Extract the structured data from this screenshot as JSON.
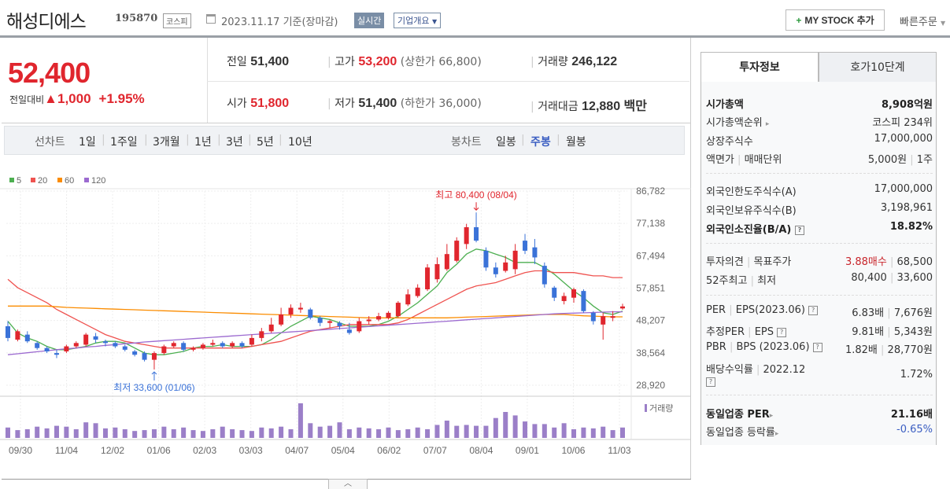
{
  "header": {
    "name": "해성디에스",
    "code": "195870",
    "market": "코스피",
    "date": "2023.11.17  기준(장마감)",
    "live": "실시간",
    "overview": "기업개요",
    "mystock": "MY STOCK 추가",
    "quick_order": "빠른주문"
  },
  "price": {
    "current": "52,400",
    "change_label": "전일대비",
    "change": "▲1,000",
    "change_pct": "+1.95%"
  },
  "stats": {
    "prev_label": "전일",
    "prev": "51,400",
    "high_label": "고가",
    "high": "53,200",
    "upper_limit": "(상한가 66,800)",
    "volume_label": "거래량",
    "volume": "246,122",
    "open_label": "시가",
    "open": "51,800",
    "low_label": "저가",
    "low": "51,400",
    "lower_limit": "(하한가 36,000)",
    "amount_label": "거래대금",
    "amount": "12,880",
    "amount_unit": "백만"
  },
  "period_tabs": {
    "line_label": "선차트",
    "line": [
      "1일",
      "1주일",
      "3개월",
      "1년",
      "3년",
      "5년",
      "10년"
    ],
    "candle_label": "봉차트",
    "candle": [
      "일봉",
      "주봉",
      "월봉"
    ],
    "active": "주봉"
  },
  "chart_data": {
    "type": "candlestick",
    "legend": [
      {
        "name": "5",
        "color": "#4caf50"
      },
      {
        "name": "20",
        "color": "#ef5350"
      },
      {
        "name": "60",
        "color": "#fb8c00"
      },
      {
        "name": "120",
        "color": "#9c6ad0"
      }
    ],
    "y_ticks": [
      "86,782",
      "77,138",
      "67,494",
      "57,851",
      "48,207",
      "38,564",
      "28,920"
    ],
    "ylim": [
      28920,
      86782
    ],
    "x_ticks": [
      "09/30",
      "11/04",
      "12/02",
      "01/06",
      "02/03",
      "03/03",
      "04/07",
      "05/04",
      "06/02",
      "07/07",
      "08/04",
      "09/01",
      "10/06",
      "11/03"
    ],
    "high_note": "최고 80,400 (08/04)",
    "low_note": "최저 33,600 (01/06)",
    "volume_label": "거래량",
    "candles": [
      [
        46500,
        43000,
        48000,
        42000
      ],
      [
        42500,
        45000,
        45500,
        42000
      ],
      [
        44000,
        42000,
        45000,
        41500
      ],
      [
        41500,
        40000,
        42000,
        39500
      ],
      [
        40000,
        39000,
        40500,
        38500
      ],
      [
        38500,
        38000,
        39500,
        37000
      ],
      [
        39000,
        40500,
        41000,
        38500
      ],
      [
        40500,
        41500,
        42000,
        40000
      ],
      [
        41000,
        44000,
        44500,
        40500
      ],
      [
        43500,
        42500,
        44500,
        41500
      ],
      [
        42000,
        41500,
        42500,
        40500
      ],
      [
        41500,
        40500,
        42000,
        40000
      ],
      [
        40500,
        39500,
        41000,
        39000
      ],
      [
        39000,
        38000,
        39500,
        37500
      ],
      [
        38500,
        36500,
        39000,
        36000
      ],
      [
        36500,
        38500,
        39000,
        33600
      ],
      [
        38500,
        40500,
        41000,
        38000
      ],
      [
        40500,
        41500,
        42000,
        40000
      ],
      [
        41500,
        39500,
        42000,
        39000
      ],
      [
        39500,
        40000,
        40500,
        39000
      ],
      [
        40000,
        41000,
        41500,
        39500
      ],
      [
        41000,
        41500,
        42500,
        40500
      ],
      [
        41500,
        40500,
        42000,
        40000
      ],
      [
        40500,
        41500,
        42000,
        40000
      ],
      [
        41500,
        40500,
        42000,
        40000
      ],
      [
        41000,
        43000,
        44000,
        40500
      ],
      [
        43000,
        45000,
        46000,
        42000
      ],
      [
        45000,
        47000,
        49000,
        44500
      ],
      [
        47000,
        50000,
        52000,
        46500
      ],
      [
        50000,
        52000,
        53000,
        49000
      ],
      [
        51500,
        52000,
        53500,
        50500
      ],
      [
        51500,
        49000,
        52000,
        48500
      ],
      [
        49000,
        47500,
        49500,
        46500
      ],
      [
        47500,
        48000,
        48500,
        46000
      ],
      [
        47500,
        46500,
        48000,
        45500
      ],
      [
        45500,
        44500,
        47500,
        44000
      ],
      [
        45000,
        48000,
        49000,
        44500
      ],
      [
        48000,
        48500,
        49500,
        47000
      ],
      [
        48500,
        49500,
        50500,
        48000
      ],
      [
        49000,
        50500,
        51000,
        48500
      ],
      [
        49500,
        53500,
        54000,
        49000
      ],
      [
        53000,
        56000,
        57500,
        52500
      ],
      [
        55500,
        58000,
        59000,
        55000
      ],
      [
        57500,
        64000,
        65000,
        57000
      ],
      [
        60500,
        65000,
        67000,
        59500
      ],
      [
        63500,
        68000,
        71000,
        63000
      ],
      [
        66000,
        72000,
        73000,
        65500
      ],
      [
        71000,
        76000,
        77000,
        69500
      ],
      [
        76000,
        72000,
        80400,
        71500
      ],
      [
        69000,
        64000,
        70000,
        63000
      ],
      [
        64000,
        62000,
        65500,
        61000
      ],
      [
        63000,
        65500,
        67500,
        62500
      ],
      [
        63500,
        69000,
        71000,
        62000
      ],
      [
        72000,
        69000,
        74000,
        68000
      ],
      [
        70000,
        67000,
        72500,
        65000
      ],
      [
        64500,
        59000,
        65500,
        58000
      ],
      [
        58000,
        55000,
        58500,
        54000
      ],
      [
        54000,
        55500,
        56500,
        53000
      ],
      [
        55000,
        57500,
        58000,
        53500
      ],
      [
        57000,
        51000,
        57500,
        50500
      ],
      [
        50500,
        48000,
        51000,
        47000
      ],
      [
        47000,
        49500,
        50500,
        42500
      ],
      [
        49000,
        49500,
        51000,
        48000
      ],
      [
        51800,
        52400,
        53200,
        51400
      ]
    ],
    "series": [
      {
        "name": "5",
        "values": [
          48000,
          44500,
          43000,
          42000,
          40500,
          39500,
          39500,
          40000,
          40500,
          41500,
          42000,
          42000,
          41500,
          40000,
          38500,
          38000,
          38000,
          38500,
          39000,
          40000,
          40500,
          40500,
          41000,
          40500,
          40500,
          40500,
          41000,
          42500,
          44500,
          46500,
          48000,
          49500,
          49000,
          48500,
          47500,
          46500,
          46500,
          46500,
          47000,
          48000,
          49500,
          51500,
          53500,
          56000,
          58500,
          62500,
          65000,
          68000,
          69500,
          69000,
          68000,
          67000,
          65500,
          65500,
          65500,
          64000,
          62000,
          59500,
          57000,
          55000,
          52500,
          50500,
          50000,
          51000
        ]
      },
      {
        "name": "20",
        "values": [
          60500,
          58000,
          56500,
          55000,
          53500,
          51500,
          50000,
          48500,
          47000,
          45500,
          44000,
          43000,
          42000,
          41500,
          41000,
          40500,
          40000,
          40000,
          40000,
          40000,
          40000,
          40000,
          40000,
          40000,
          40000,
          40500,
          41000,
          41500,
          42000,
          43000,
          44000,
          45000,
          45500,
          46000,
          46500,
          47000,
          47000,
          47000,
          47000,
          47000,
          47500,
          48500,
          50000,
          51500,
          53000,
          54500,
          56000,
          57500,
          58500,
          59000,
          59500,
          60500,
          61500,
          62500,
          63000,
          63000,
          62500,
          62500,
          62500,
          62000,
          61500,
          61500,
          61000,
          61000
        ]
      },
      {
        "name": "60",
        "values": [
          52500,
          52500,
          52500,
          52500,
          52500,
          52300,
          52100,
          52000,
          51900,
          51800,
          51700,
          51600,
          51500,
          51400,
          51300,
          51200,
          51100,
          51000,
          50900,
          50800,
          50700,
          50600,
          50500,
          50400,
          50300,
          50200,
          50100,
          50000,
          49900,
          49800,
          49700,
          49600,
          49500,
          49400,
          49300,
          49200,
          49100,
          49000,
          49000,
          49000,
          49000,
          49000,
          49000,
          49000,
          49000,
          49000,
          49100,
          49200,
          49300,
          49400,
          49500,
          49600,
          49700,
          49800,
          49900,
          50000,
          50000,
          50000,
          49800,
          49600,
          49500,
          49400,
          49300,
          49300
        ]
      },
      {
        "name": "120",
        "values": [
          38000,
          38300,
          38600,
          38900,
          39200,
          39500,
          39800,
          40000,
          40300,
          40500,
          40800,
          41000,
          41300,
          41500,
          41800,
          42000,
          42200,
          42400,
          42600,
          42800,
          43000,
          43200,
          43400,
          43600,
          43800,
          44000,
          44200,
          44400,
          44600,
          44800,
          45000,
          45200,
          45400,
          45600,
          45800,
          46000,
          46200,
          46400,
          46600,
          46800,
          47000,
          47200,
          47400,
          47600,
          47800,
          48000,
          48200,
          48400,
          48600,
          48800,
          49000,
          49200,
          49400,
          49600,
          49800,
          50000,
          50200,
          50300,
          50400,
          50500,
          50600,
          50700,
          50800,
          50800
        ]
      }
    ],
    "volumes": [
      1.2,
      0.9,
      1.0,
      1.3,
      1.1,
      1.4,
      1.3,
      1.0,
      1.8,
      1.7,
      1.1,
      1.2,
      1.0,
      0.8,
      0.9,
      1.0,
      1.3,
      1.0,
      1.2,
      0.9,
      0.8,
      1.0,
      1.3,
      1.0,
      0.9,
      0.8,
      1.2,
      1.1,
      1.3,
      1.0,
      4.0,
      1.7,
      1.3,
      1.4,
      1.8,
      1.0,
      1.2,
      1.1,
      1.0,
      1.2,
      0.9,
      1.0,
      1.2,
      1.0,
      1.5,
      2.0,
      1.4,
      1.5,
      1.4,
      1.4,
      2.3,
      3.0,
      2.6,
      1.9,
      1.6,
      1.6,
      1.2,
      1.7,
      1.0,
      1.2,
      1.1,
      1.3,
      0.9,
      1.2
    ]
  },
  "right_panel": {
    "tab_active": "투자정보",
    "tab_other": "호가10단계",
    "rows": {
      "mktcap_k": "시가총액",
      "mktcap_v": "8,908억원",
      "rank_k": "시가총액순위",
      "rank_v": "코스피 234위",
      "shares_k": "상장주식수",
      "shares_v": "17,000,000",
      "par_k1": "액면가",
      "par_k2": "매매단위",
      "par_v1": "5,000원",
      "par_v2": "1주",
      "flimit_k": "외국인한도주식수(A)",
      "flimit_v": "17,000,000",
      "fhold_k": "외국인보유주식수(B)",
      "fhold_v": "3,198,961",
      "fratio_k": "외국인소진율(B/A)",
      "fratio_v": "18.82%",
      "opinion_k1": "투자의견",
      "opinion_k2": "목표주가",
      "opinion_v1": "3.88매수",
      "opinion_v2": "68,500",
      "w52_k1": "52주최고",
      "w52_k2": "최저",
      "w52_v1": "80,400",
      "w52_v2": "33,600",
      "per_k1": "PER",
      "per_k2": "EPS(2023.06)",
      "per_v1": "6.83배",
      "per_v2": "7,676원",
      "eper_k1": "추정PER",
      "eper_k2": "EPS",
      "eper_v1": "9.81배",
      "eper_v2": "5,343원",
      "pbr_k1": "PBR",
      "pbr_k2": "BPS (2023.06)",
      "pbr_v1": "1.82배",
      "pbr_v2": "28,770원",
      "div_k1": "배당수익률",
      "div_k2": "2022.12",
      "div_v": "1.72%",
      "sper_k": "동일업종 PER",
      "sper_v": "21.16배",
      "srate_k": "동일업종 등락률",
      "srate_v": "-0.65%"
    }
  }
}
